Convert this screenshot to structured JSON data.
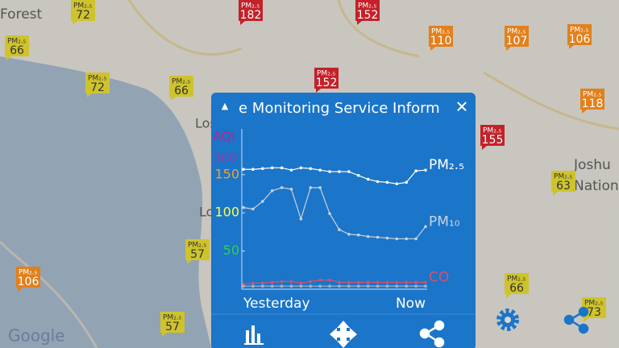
{
  "map": {
    "labels": [
      "Forest",
      "Los",
      "Lo",
      "Joshu",
      "Nation",
      "Google"
    ],
    "marker_label": "PM₂.₅",
    "marker_colors": {
      "good": "#cfc32c",
      "moderate": "#e2801c",
      "bad": "#c42129"
    },
    "markers": [
      {
        "value": 72,
        "level": "good"
      },
      {
        "value": 66,
        "level": "good"
      },
      {
        "value": 72,
        "level": "good"
      },
      {
        "value": 66,
        "level": "good"
      },
      {
        "value": 182,
        "level": "bad"
      },
      {
        "value": 152,
        "level": "bad"
      },
      {
        "value": 152,
        "level": "bad"
      },
      {
        "value": 110,
        "level": "moderate"
      },
      {
        "value": 107,
        "level": "moderate"
      },
      {
        "value": 106,
        "level": "moderate"
      },
      {
        "value": 118,
        "level": "moderate"
      },
      {
        "value": 155,
        "level": "bad"
      },
      {
        "value": 63,
        "level": "good"
      },
      {
        "value": 57,
        "level": "good"
      },
      {
        "value": 106,
        "level": "moderate"
      },
      {
        "value": 57,
        "level": "good"
      },
      {
        "value": 66,
        "level": "good"
      },
      {
        "value": 73,
        "level": "good"
      }
    ]
  },
  "popup": {
    "title": "e Monitoring Service Inform"
  },
  "chart_data": {
    "type": "line",
    "ylabel": "AQI",
    "ylabel_color": "#c0208e",
    "top_label": 300,
    "top_label_color": "#9a3aa8",
    "categories": [
      "Yesterday",
      null,
      null,
      null,
      null,
      null,
      null,
      null,
      null,
      null,
      null,
      null,
      null,
      null,
      null,
      null,
      null,
      null,
      null,
      "Now"
    ],
    "ylim": [
      0,
      210
    ],
    "yticks": [
      50,
      100,
      150
    ],
    "ytick_colors": [
      "#33d04a",
      "#ffff3c",
      "#f0a030"
    ],
    "series": [
      {
        "name": "PM₂.₅",
        "color": "#ffffff",
        "values": [
          157,
          157,
          158,
          159,
          159,
          156,
          159,
          158,
          156,
          154,
          154,
          154,
          149,
          144,
          141,
          140,
          138,
          140,
          155,
          156
        ]
      },
      {
        "name": "PM₁₀",
        "color": "#c9d2de",
        "values": [
          107,
          105,
          115,
          129,
          133,
          131,
          92,
          133,
          133,
          99,
          78,
          72,
          71,
          69,
          68,
          67,
          66,
          66,
          66,
          82
        ]
      },
      {
        "name": "CO",
        "color": "#d8506a",
        "values": [
          7,
          8,
          8,
          9,
          10,
          10,
          8,
          10,
          12,
          12,
          9,
          9,
          9,
          9,
          9,
          9,
          9,
          9,
          9,
          9
        ]
      },
      {
        "color": "#a8b4c4",
        "values": [
          4,
          4,
          4,
          4,
          4,
          4,
          4,
          4,
          4,
          4,
          4,
          4,
          4,
          4,
          4,
          4,
          4,
          4,
          4,
          4
        ]
      }
    ]
  }
}
